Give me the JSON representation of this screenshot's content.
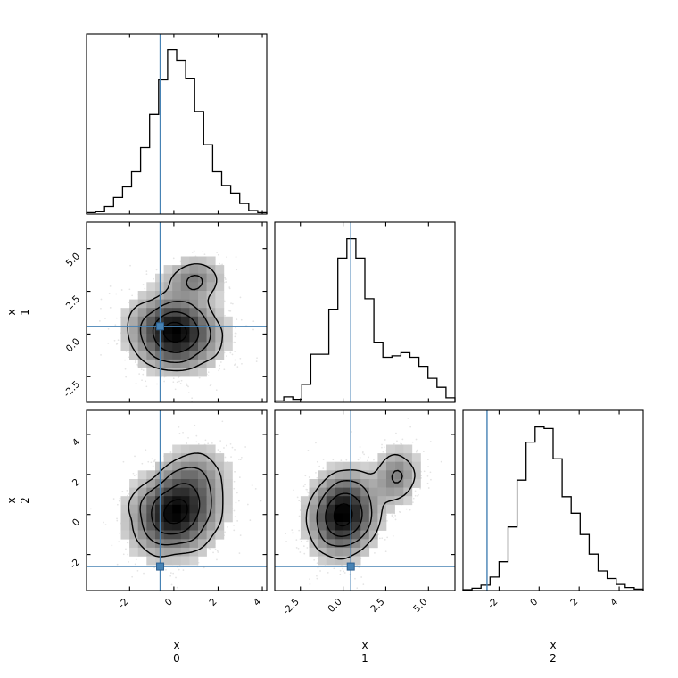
{
  "chart_data": {
    "type": "corner (pairwise 2D density panels + marginal histograms)",
    "title": "",
    "grid": "off",
    "legend": "none",
    "variables": [
      {
        "id": "x0",
        "label_name": "x",
        "label_sub": "0",
        "range": [
          -3.95,
          4.2
        ],
        "ticks": [
          -2,
          0,
          2,
          4
        ],
        "tick_labels": [
          "-2",
          "0",
          "2",
          "4"
        ],
        "truth": -0.62,
        "hist_norm_permille": [
          8,
          13,
          42,
          92,
          151,
          235,
          369,
          553,
          745,
          913,
          854,
          754,
          570,
          385,
          235,
          159,
          117,
          59,
          20,
          8
        ]
      },
      {
        "id": "x1",
        "label_name": "x",
        "label_sub": "1",
        "range": [
          -4.0,
          6.55
        ],
        "ticks": [
          -2.5,
          0.0,
          2.5,
          5.0
        ],
        "tick_labels": [
          "-2.5",
          "0.0",
          "2.5",
          "5.0"
        ],
        "truth": 0.45,
        "hist_norm_permille": [
          8,
          30,
          17,
          100,
          267,
          267,
          517,
          800,
          908,
          800,
          575,
          333,
          250,
          258,
          275,
          250,
          200,
          133,
          83,
          25
        ]
      },
      {
        "id": "x2",
        "label_name": "x",
        "label_sub": "2",
        "range": [
          -3.8,
          5.2
        ],
        "ticks": [
          -2,
          0,
          2,
          4
        ],
        "tick_labels": [
          "-2",
          "0",
          "2",
          "4"
        ],
        "truth": -2.6,
        "hist_norm_permille": [
          5,
          13,
          30,
          75,
          160,
          353,
          613,
          824,
          908,
          899,
          731,
          521,
          429,
          311,
          202,
          109,
          67,
          34,
          17,
          8
        ]
      }
    ],
    "panels_2d": [
      {
        "x": 0,
        "y": 1,
        "seed": 7,
        "n_scatter": 2600,
        "components": [
          {
            "mean": [
              0.05,
              0.1
            ],
            "sigma": [
              1.05,
              1.15
            ],
            "rho": -0.05,
            "weight": 0.87
          },
          {
            "mean": [
              0.9,
              3.2
            ],
            "sigma": [
              0.75,
              0.7
            ],
            "rho": 0.1,
            "weight": 0.13
          }
        ]
      },
      {
        "x": 0,
        "y": 2,
        "seed": 19,
        "n_scatter": 2600,
        "components": [
          {
            "mean": [
              0.05,
              0.05
            ],
            "sigma": [
              1.05,
              1.1
            ],
            "rho": 0.12,
            "weight": 0.85
          },
          {
            "mean": [
              0.9,
              1.9
            ],
            "sigma": [
              0.85,
              0.9
            ],
            "rho": 0.15,
            "weight": 0.15
          }
        ]
      },
      {
        "x": 1,
        "y": 2,
        "seed": 31,
        "n_scatter": 2600,
        "components": [
          {
            "mean": [
              0.0,
              0.0
            ],
            "sigma": [
              1.05,
              1.1
            ],
            "rho": 0.08,
            "weight": 0.85
          },
          {
            "mean": [
              3.1,
              1.9
            ],
            "sigma": [
              0.75,
              0.8
            ],
            "rho": 0.15,
            "weight": 0.15
          }
        ]
      }
    ],
    "style": {
      "background": "#ffffff",
      "line_color": "#000000",
      "truth_color": "#4682B4",
      "truth_edge": "#2d5f8e",
      "scatter_color": "#555555",
      "scatter_opacity": 0.16,
      "contour_levels": [
        0.135,
        0.325,
        0.607,
        0.882
      ]
    }
  }
}
